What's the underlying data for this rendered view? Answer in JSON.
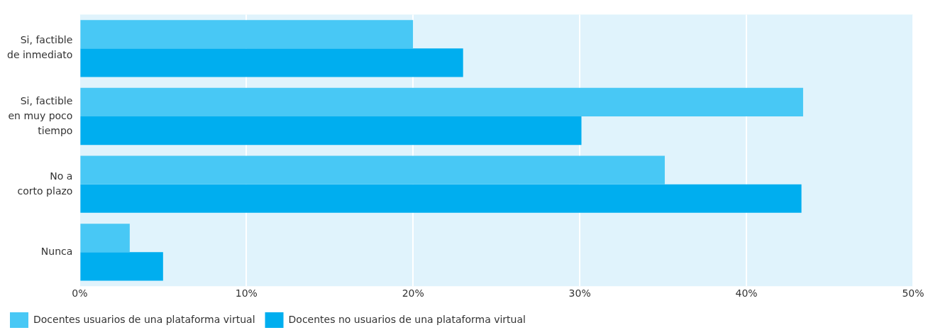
{
  "chart_data": {
    "type": "bar",
    "orientation": "horizontal",
    "categories": [
      "Si, factible\nde inmediato",
      "Si, factible\nen muy poco\ntiempo",
      "No a\ncorto plazo",
      "Nunca"
    ],
    "series": [
      {
        "name": "Docentes usuarios de una plataforma virtual",
        "color": "#48c8f5",
        "values": [
          20,
          43.4,
          35.1,
          3
        ]
      },
      {
        "name": "Docentes no usuarios de una plataforma virtual",
        "color": "#00aeef",
        "values": [
          23,
          30.1,
          43.3,
          5
        ]
      }
    ],
    "xlim": [
      0,
      50
    ],
    "xticks": [
      {
        "value": 0,
        "label": "0%"
      },
      {
        "value": 10,
        "label": "10%"
      },
      {
        "value": 20,
        "label": "20%"
      },
      {
        "value": 30,
        "label": "30%"
      },
      {
        "value": 40,
        "label": "40%"
      },
      {
        "value": 50,
        "label": "50%"
      }
    ],
    "grid": "x",
    "legend": "bottom left"
  }
}
